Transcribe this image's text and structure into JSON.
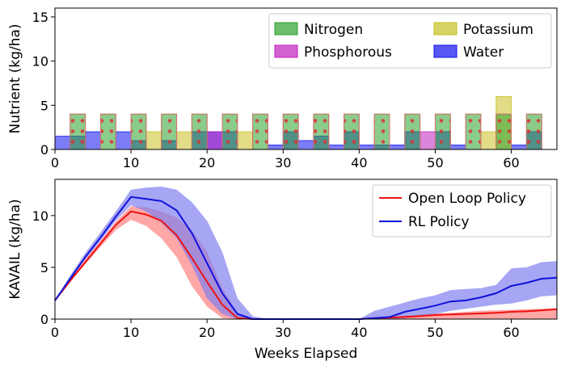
{
  "chart_data": [
    {
      "type": "bar",
      "xlabel": "",
      "ylabel": "Nutrient (kg/ha)",
      "xlim": [
        0,
        66
      ],
      "ylim": [
        0,
        16
      ],
      "xticks": [
        0,
        10,
        20,
        30,
        40,
        50,
        60
      ],
      "yticks": [
        0,
        5,
        10,
        15
      ],
      "legend": {
        "placement": "top-right",
        "columns": 2
      },
      "series": [
        {
          "name": "Nitrogen",
          "color": "#2ca02c",
          "hatch": "dots",
          "weeks": [
            3,
            7,
            11,
            15,
            19,
            23,
            27,
            31,
            35,
            39,
            43,
            47,
            51,
            55,
            59,
            63
          ],
          "values": [
            4,
            4,
            4,
            4,
            4,
            4,
            4,
            4,
            4,
            4,
            4,
            4,
            4,
            4,
            4,
            4
          ]
        },
        {
          "name": "Phosphorous",
          "color": "#c020c0",
          "weeks": [
            21,
            49
          ],
          "values": [
            2,
            2
          ]
        },
        {
          "name": "Potassium",
          "color": "#c8c020",
          "weeks": [
            13,
            17,
            25,
            57,
            59
          ],
          "values": [
            2,
            2,
            2,
            2,
            6
          ]
        },
        {
          "name": "Water",
          "color": "#1010ee",
          "weeks": [
            1,
            3,
            5,
            9,
            11,
            15,
            19,
            21,
            23,
            29,
            31,
            33,
            35,
            37,
            39,
            41,
            43,
            45,
            47,
            51,
            53,
            61,
            63
          ],
          "values": [
            1.5,
            1.5,
            2,
            2,
            1,
            1,
            2,
            2,
            2,
            0.5,
            2,
            1,
            1.5,
            0.5,
            2,
            0.5,
            0.5,
            0.5,
            2,
            2,
            0.5,
            0.5,
            2
          ]
        }
      ]
    },
    {
      "type": "line",
      "xlabel": "Weeks Elapsed",
      "ylabel": "KAVAIL (kg/ha)",
      "xlim": [
        0,
        66
      ],
      "ylim": [
        0,
        13.5
      ],
      "xticks": [
        0,
        10,
        20,
        30,
        40,
        50,
        60
      ],
      "yticks": [
        0,
        5,
        10
      ],
      "legend": {
        "placement": "top-right"
      },
      "x": [
        0,
        2,
        4,
        6,
        8,
        10,
        12,
        14,
        16,
        18,
        20,
        22,
        24,
        26,
        28,
        30,
        32,
        34,
        36,
        38,
        40,
        42,
        44,
        46,
        48,
        50,
        52,
        54,
        56,
        58,
        60,
        62,
        64,
        66
      ],
      "series": [
        {
          "name": "Open Loop Policy",
          "color": "#ee1111",
          "band_color": "#ff8080",
          "values": [
            1.8,
            3.7,
            5.5,
            7.3,
            9.1,
            10.4,
            10.1,
            9.5,
            8.1,
            5.9,
            3.6,
            1.4,
            0.1,
            0,
            0,
            0,
            0,
            0,
            0,
            0,
            0,
            0.1,
            0.15,
            0.2,
            0.3,
            0.4,
            0.45,
            0.5,
            0.55,
            0.6,
            0.7,
            0.75,
            0.85,
            0.95
          ],
          "lower": [
            1.8,
            3.6,
            5.3,
            7.0,
            8.6,
            9.6,
            9.0,
            7.8,
            6.0,
            3.2,
            1.2,
            0.1,
            0,
            0,
            0,
            0,
            0,
            0,
            0,
            0,
            0,
            0,
            0,
            0,
            0,
            0,
            0,
            0,
            0,
            0,
            0,
            0,
            0,
            0
          ],
          "upper": [
            1.8,
            3.9,
            5.8,
            7.6,
            9.4,
            10.9,
            10.8,
            10.4,
            9.8,
            8.6,
            6.5,
            3.0,
            0.6,
            0.05,
            0,
            0,
            0,
            0,
            0,
            0,
            0,
            0.15,
            0.25,
            0.35,
            0.45,
            0.55,
            0.6,
            0.7,
            0.8,
            0.85,
            0.9,
            0.95,
            1.0,
            1.05
          ]
        },
        {
          "name": "RL Policy",
          "color": "#1111dd",
          "band_color": "#8080f0",
          "values": [
            1.8,
            3.9,
            6.0,
            7.9,
            9.9,
            11.8,
            11.6,
            11.4,
            10.5,
            8.3,
            5.4,
            2.5,
            0.5,
            0,
            0,
            0,
            0,
            0,
            0,
            0,
            0,
            0.1,
            0.2,
            0.7,
            1.0,
            1.3,
            1.7,
            1.8,
            2.1,
            2.5,
            3.2,
            3.5,
            3.9,
            4.0
          ],
          "lower": [
            1.8,
            3.8,
            5.8,
            7.6,
            9.5,
            11.0,
            10.4,
            9.3,
            7.8,
            5.2,
            2.0,
            0.5,
            0,
            0,
            0,
            0,
            0,
            0,
            0,
            0,
            0,
            0,
            0,
            0.1,
            0.3,
            0.5,
            0.8,
            1.0,
            1.2,
            1.4,
            1.5,
            1.8,
            2.2,
            2.3
          ],
          "upper": [
            1.8,
            4.2,
            6.4,
            8.4,
            10.4,
            12.5,
            12.7,
            12.8,
            12.5,
            11.3,
            9.5,
            6.5,
            2.0,
            0.3,
            0,
            0,
            0,
            0,
            0,
            0,
            0,
            0.8,
            1.2,
            1.6,
            2.0,
            2.3,
            2.8,
            2.9,
            3.0,
            3.3,
            4.9,
            5.0,
            5.5,
            5.6
          ]
        }
      ]
    }
  ]
}
